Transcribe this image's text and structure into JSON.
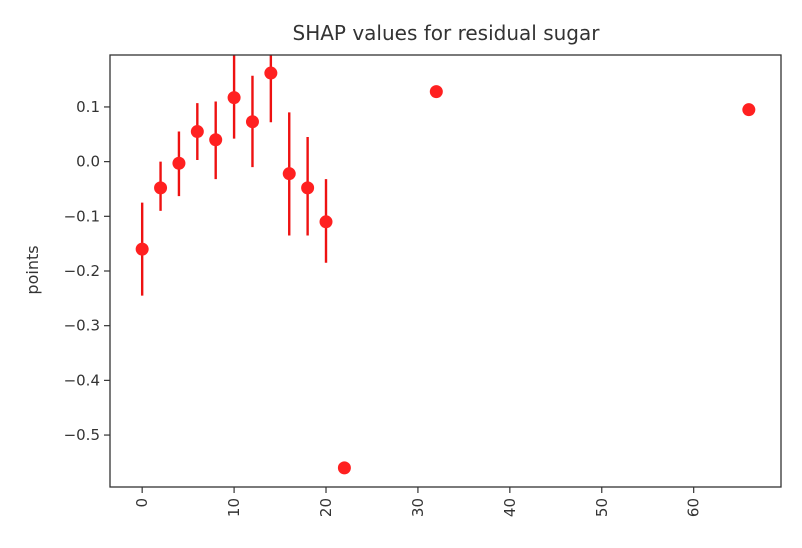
{
  "chart_data": {
    "type": "scatter",
    "title": "SHAP values for residual sugar",
    "xlabel": "",
    "ylabel": "points",
    "xlim": [
      -3.5,
      69.5
    ],
    "ylim": [
      -0.595,
      0.195
    ],
    "xticks": [
      0,
      10,
      20,
      30,
      40,
      50,
      60
    ],
    "xtick_labels": [
      "0",
      "10",
      "20",
      "30",
      "40",
      "50",
      "60"
    ],
    "yticks": [
      0.1,
      0.0,
      -0.1,
      -0.2,
      -0.3,
      -0.4,
      -0.5
    ],
    "ytick_labels": [
      "0.1",
      "0.0",
      "−0.1",
      "−0.2",
      "−0.3",
      "−0.4",
      "−0.5"
    ],
    "grid": false,
    "marker_color": "#ff2020",
    "error_color": "#ee1111",
    "points": [
      {
        "x": 0,
        "y": -0.16,
        "err_low": -0.245,
        "err_high": -0.075
      },
      {
        "x": 2,
        "y": -0.048,
        "err_low": -0.09,
        "err_high": 0.0
      },
      {
        "x": 4,
        "y": -0.003,
        "err_low": -0.063,
        "err_high": 0.055
      },
      {
        "x": 6,
        "y": 0.055,
        "err_low": 0.003,
        "err_high": 0.107
      },
      {
        "x": 8,
        "y": 0.04,
        "err_low": -0.032,
        "err_high": 0.11
      },
      {
        "x": 10,
        "y": 0.117,
        "err_low": 0.042,
        "err_high": 0.195
      },
      {
        "x": 12,
        "y": 0.073,
        "err_low": -0.01,
        "err_high": 0.157
      },
      {
        "x": 14,
        "y": 0.162,
        "err_low": 0.072,
        "err_high": 0.195
      },
      {
        "x": 16,
        "y": -0.022,
        "err_low": -0.135,
        "err_high": 0.09
      },
      {
        "x": 18,
        "y": -0.048,
        "err_low": -0.135,
        "err_high": 0.045
      },
      {
        "x": 20,
        "y": -0.11,
        "err_low": -0.185,
        "err_high": -0.032
      },
      {
        "x": 22,
        "y": -0.56,
        "err_low": null,
        "err_high": null
      },
      {
        "x": 32,
        "y": 0.128,
        "err_low": null,
        "err_high": null
      },
      {
        "x": 66,
        "y": 0.095,
        "err_low": null,
        "err_high": null
      }
    ]
  }
}
